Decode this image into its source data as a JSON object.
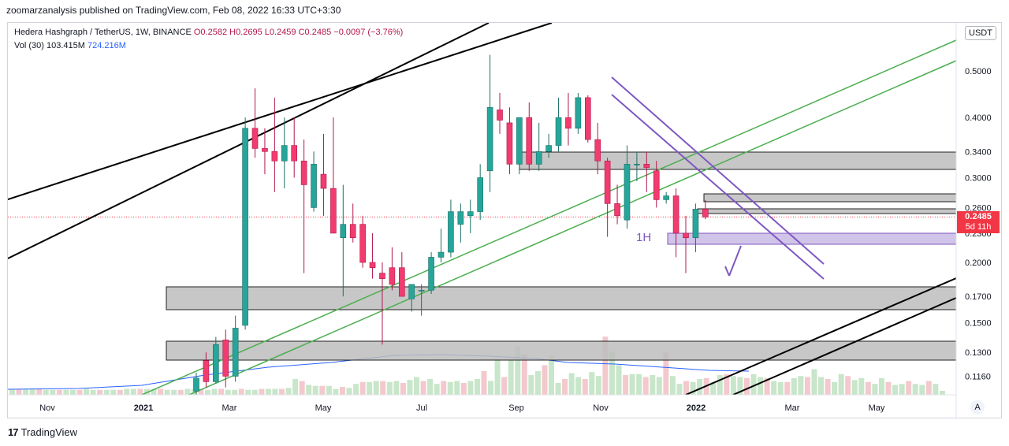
{
  "header": {
    "published": "zoomarzanalysis published on TradingView.com, Feb 08, 2022 16:33 UTC+3:30"
  },
  "legend": {
    "symbol": "Hedera Hashgraph / TetherUS, 1W, BINANCE",
    "open": "O0.2582",
    "high": "H0.2695",
    "low": "L0.2459",
    "close": "C0.2485",
    "change": "−0.0097 (−3.76%)",
    "vol_label": "Vol (30)",
    "vol_value": "103.415M",
    "vol_ma": "724.216M"
  },
  "currency_button": "USDT",
  "auto_button": "A",
  "price_tag": {
    "price": "0.2485",
    "countdown": "5d 11h"
  },
  "footer": {
    "brand": "TradingView"
  },
  "colors": {
    "up": "#26a69a",
    "down": "#ef5350",
    "up_body": "#26a69a",
    "down_body": "#f23b6f",
    "vol_up": "#c8e6c9",
    "vol_down": "#f3c9ce",
    "zone": "#bdbdbd",
    "purple_zone": "#d1c4e9",
    "green_line": "#4caf50",
    "purple_line": "#7e57c2",
    "ma_line": "#2962ff",
    "channel": "#000000"
  },
  "chart_data": {
    "type": "candlestick",
    "title": "Hedera Hashgraph / TetherUS, 1W, BINANCE",
    "scale": "log",
    "ylim": [
      0.108,
      0.62
    ],
    "y_ticks": [
      "0.5000",
      "0.4000",
      "0.3400",
      "0.3000",
      "0.2600",
      "0.2300",
      "0.2000",
      "0.1700",
      "0.1500",
      "0.1300",
      "0.1160"
    ],
    "x_ticks": [
      "Nov",
      "2021",
      "Mar",
      "May",
      "Jul",
      "Sep",
      "Nov",
      "2022",
      "Mar",
      "May"
    ],
    "annotations": [
      "1H"
    ],
    "last_price": 0.2485,
    "candles": [
      {
        "o": 0.108,
        "h": 0.118,
        "l": 0.106,
        "c": 0.115
      },
      {
        "o": 0.125,
        "h": 0.13,
        "l": 0.11,
        "c": 0.113
      },
      {
        "o": 0.113,
        "h": 0.14,
        "l": 0.112,
        "c": 0.135
      },
      {
        "o": 0.138,
        "h": 0.145,
        "l": 0.11,
        "c": 0.116
      },
      {
        "o": 0.116,
        "h": 0.155,
        "l": 0.113,
        "c": 0.146
      },
      {
        "o": 0.148,
        "h": 0.4,
        "l": 0.145,
        "c": 0.38
      },
      {
        "o": 0.38,
        "h": 0.46,
        "l": 0.33,
        "c": 0.345
      },
      {
        "o": 0.345,
        "h": 0.38,
        "l": 0.305,
        "c": 0.34
      },
      {
        "o": 0.34,
        "h": 0.44,
        "l": 0.28,
        "c": 0.325
      },
      {
        "o": 0.325,
        "h": 0.4,
        "l": 0.285,
        "c": 0.35
      },
      {
        "o": 0.35,
        "h": 0.4,
        "l": 0.3,
        "c": 0.325
      },
      {
        "o": 0.325,
        "h": 0.36,
        "l": 0.19,
        "c": 0.29
      },
      {
        "o": 0.26,
        "h": 0.34,
        "l": 0.255,
        "c": 0.32
      },
      {
        "o": 0.305,
        "h": 0.37,
        "l": 0.25,
        "c": 0.285
      },
      {
        "o": 0.285,
        "h": 0.4,
        "l": 0.23,
        "c": 0.23
      },
      {
        "o": 0.225,
        "h": 0.29,
        "l": 0.17,
        "c": 0.24
      },
      {
        "o": 0.24,
        "h": 0.265,
        "l": 0.22,
        "c": 0.225
      },
      {
        "o": 0.24,
        "h": 0.25,
        "l": 0.195,
        "c": 0.2
      },
      {
        "o": 0.2,
        "h": 0.23,
        "l": 0.185,
        "c": 0.195
      },
      {
        "o": 0.19,
        "h": 0.2,
        "l": 0.135,
        "c": 0.185
      },
      {
        "o": 0.195,
        "h": 0.215,
        "l": 0.175,
        "c": 0.18
      },
      {
        "o": 0.195,
        "h": 0.21,
        "l": 0.17,
        "c": 0.17
      },
      {
        "o": 0.168,
        "h": 0.18,
        "l": 0.158,
        "c": 0.18
      },
      {
        "o": 0.175,
        "h": 0.18,
        "l": 0.155,
        "c": 0.175
      },
      {
        "o": 0.175,
        "h": 0.21,
        "l": 0.172,
        "c": 0.205
      },
      {
        "o": 0.205,
        "h": 0.235,
        "l": 0.2,
        "c": 0.21
      },
      {
        "o": 0.21,
        "h": 0.27,
        "l": 0.205,
        "c": 0.255
      },
      {
        "o": 0.24,
        "h": 0.265,
        "l": 0.22,
        "c": 0.255
      },
      {
        "o": 0.25,
        "h": 0.27,
        "l": 0.23,
        "c": 0.255
      },
      {
        "o": 0.255,
        "h": 0.32,
        "l": 0.245,
        "c": 0.3
      },
      {
        "o": 0.31,
        "h": 0.54,
        "l": 0.28,
        "c": 0.42
      },
      {
        "o": 0.415,
        "h": 0.45,
        "l": 0.37,
        "c": 0.395
      },
      {
        "o": 0.39,
        "h": 0.42,
        "l": 0.305,
        "c": 0.32
      },
      {
        "o": 0.32,
        "h": 0.4,
        "l": 0.305,
        "c": 0.4
      },
      {
        "o": 0.4,
        "h": 0.43,
        "l": 0.31,
        "c": 0.32
      },
      {
        "o": 0.32,
        "h": 0.39,
        "l": 0.31,
        "c": 0.34
      },
      {
        "o": 0.34,
        "h": 0.37,
        "l": 0.33,
        "c": 0.35
      },
      {
        "o": 0.35,
        "h": 0.44,
        "l": 0.34,
        "c": 0.4
      },
      {
        "o": 0.4,
        "h": 0.45,
        "l": 0.35,
        "c": 0.38
      },
      {
        "o": 0.38,
        "h": 0.45,
        "l": 0.37,
        "c": 0.44
      },
      {
        "o": 0.44,
        "h": 0.445,
        "l": 0.355,
        "c": 0.36
      },
      {
        "o": 0.36,
        "h": 0.39,
        "l": 0.305,
        "c": 0.325
      },
      {
        "o": 0.325,
        "h": 0.33,
        "l": 0.226,
        "c": 0.265
      },
      {
        "o": 0.265,
        "h": 0.29,
        "l": 0.24,
        "c": 0.25
      },
      {
        "o": 0.245,
        "h": 0.35,
        "l": 0.235,
        "c": 0.32
      },
      {
        "o": 0.32,
        "h": 0.34,
        "l": 0.295,
        "c": 0.32
      },
      {
        "o": 0.32,
        "h": 0.34,
        "l": 0.28,
        "c": 0.315
      },
      {
        "o": 0.31,
        "h": 0.325,
        "l": 0.26,
        "c": 0.27
      },
      {
        "o": 0.27,
        "h": 0.28,
        "l": 0.265,
        "c": 0.275
      },
      {
        "o": 0.275,
        "h": 0.285,
        "l": 0.205,
        "c": 0.23
      },
      {
        "o": 0.23,
        "h": 0.25,
        "l": 0.19,
        "c": 0.225
      },
      {
        "o": 0.225,
        "h": 0.265,
        "l": 0.21,
        "c": 0.258
      },
      {
        "o": 0.2582,
        "h": 0.2695,
        "l": 0.2459,
        "c": 0.2485
      }
    ],
    "volume_scale": [
      0,
      12
    ],
    "volume": [
      0.6,
      0.6,
      0.6,
      0.6,
      0.6,
      0.5,
      0.5,
      0.5,
      0.5,
      0.5,
      0.5,
      0.6,
      0.5,
      0.5,
      0.5,
      0.5,
      0.5,
      0.6,
      0.6,
      0.6,
      0.6,
      0.6,
      0.6,
      0.5,
      0.5,
      0.5,
      0.6,
      0.6,
      0.6,
      0.5,
      0.6,
      0.6,
      0.5,
      0.5,
      0.6,
      0.5,
      0.5,
      0.6,
      0.6,
      0.6,
      0.6,
      0.7,
      1.6,
      1.4,
      1.0,
      0.9,
      0.9,
      0.9,
      0.6,
      0.8,
      0.7,
      1.1,
      1.3,
      1.3,
      1.4,
      1.4,
      1.3,
      1.4,
      1.2,
      1.5,
      1.8,
      1.4,
      1.6,
      1.1,
      1.4,
      1.3,
      1.4,
      1.2,
      1.4,
      1.6,
      2.4,
      1.4,
      3.7,
      1.8,
      3.6,
      4.9,
      4.1,
      2.0,
      2.4,
      3.0,
      4.0,
      1.2,
      1.6,
      2.2,
      1.8,
      1.6,
      2.3,
      1.9,
      5.9,
      4.4,
      3.0,
      2.0,
      2.1,
      2.1,
      1.8,
      2.0,
      1.8,
      4.3,
      1.9,
      1.1,
      1.4,
      1.3,
      1.6,
      1.7,
      1.3,
      2.0,
      2.1,
      1.9,
      1.8,
      1.7,
      2.1,
      1.8,
      1.7,
      1.4,
      1.3,
      1.3,
      1.7,
      1.9,
      1.8,
      2.6,
      1.8,
      1.6,
      1.3,
      2.1,
      1.9,
      1.5,
      1.7,
      1.3,
      1.1,
      1.7,
      1.3,
      1.0,
      1.1,
      1.4,
      1.1,
      1.0,
      1.4,
      1.1,
      0.4
    ],
    "volume_ma_series": "Vol (30)"
  }
}
